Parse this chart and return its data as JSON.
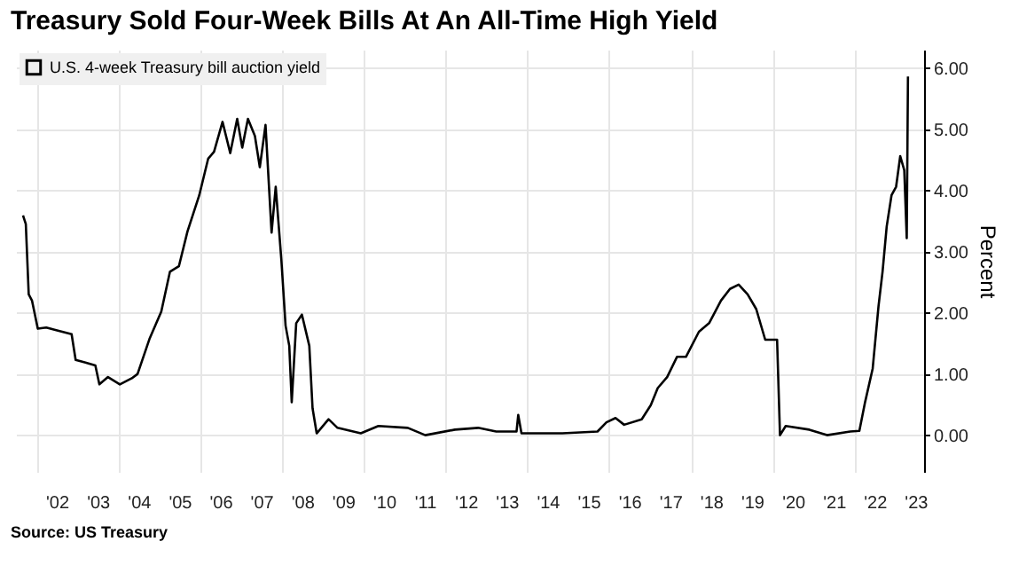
{
  "chart_data": {
    "type": "line",
    "title": "Treasury Sold Four-Week Bills At An All-Time High Yield",
    "ylabel": "Percent",
    "annotations": [
      "Source: US Treasury"
    ],
    "series": [
      {
        "name": "U.S. 4-week Treasury bill auction yield",
        "color": "#000000",
        "x": [
          "2001-09-02",
          "2001-09-27",
          "2001-10-23",
          "2001-11-21",
          "2002-01-12",
          "2002-03-29",
          "2002-06-18",
          "2002-11-10",
          "2002-12-16",
          "2003-03-07",
          "2003-06-10",
          "2003-07-16",
          "2003-10-01",
          "2004-01-15",
          "2004-05-01",
          "2004-06-21",
          "2004-10-05",
          "2005-01-19",
          "2005-04-06",
          "2005-06-25",
          "2005-09-10",
          "2005-12-24",
          "2006-03-14",
          "2006-05-05",
          "2006-07-20",
          "2006-09-27",
          "2006-11-28",
          "2007-01-12",
          "2007-03-04",
          "2007-05-05",
          "2007-06-18",
          "2007-08-08",
          "2007-10-01",
          "2007-11-07",
          "2007-12-28",
          "2008-02-03",
          "2008-03-07",
          "2008-03-29",
          "2008-05-08",
          "2008-06-28",
          "2008-09-02",
          "2008-10-01",
          "2008-11-07",
          "2009-02-21",
          "2009-05-12",
          "2009-12-06",
          "2010-05-12",
          "2011-01-30",
          "2011-07-05",
          "2012-03-25",
          "2012-10-19",
          "2013-03-29",
          "2013-09-27",
          "2013-10-12",
          "2013-11-10",
          "2014-11-10",
          "2015-09-20",
          "2015-12-09",
          "2016-02-28",
          "2016-05-15",
          "2016-10-19",
          "2017-01-08",
          "2017-03-11",
          "2017-06-03",
          "2017-08-30",
          "2017-11-18",
          "2018-03-14",
          "2018-06-13",
          "2018-09-27",
          "2018-12-16",
          "2019-03-04",
          "2019-05-23",
          "2019-08-08",
          "2019-10-27",
          "2020-02-10",
          "2020-03-07",
          "2020-04-27",
          "2020-11-24",
          "2021-05-01",
          "2021-11-24",
          "2022-02-14",
          "2022-04-06",
          "2022-06-13",
          "2022-08-04",
          "2022-09-09",
          "2022-10-16",
          "2022-11-28",
          "2023-01-08",
          "2023-02-14",
          "2023-03-22",
          "2023-04-13",
          "2023-04-24"
        ],
        "values": [
          3.59,
          3.45,
          2.3,
          2.2,
          1.74,
          1.76,
          1.72,
          1.65,
          1.23,
          1.19,
          1.14,
          0.83,
          0.95,
          0.83,
          0.93,
          1.0,
          1.57,
          2.02,
          2.67,
          2.76,
          3.33,
          3.92,
          4.52,
          4.63,
          5.12,
          4.61,
          5.17,
          4.7,
          5.17,
          4.89,
          4.38,
          5.07,
          3.31,
          4.06,
          2.85,
          1.79,
          1.46,
          0.54,
          1.83,
          1.97,
          1.46,
          0.44,
          0.03,
          0.26,
          0.12,
          0.03,
          0.15,
          0.12,
          0.0,
          0.09,
          0.12,
          0.06,
          0.06,
          0.33,
          0.03,
          0.03,
          0.06,
          0.21,
          0.28,
          0.17,
          0.26,
          0.49,
          0.77,
          0.95,
          1.28,
          1.28,
          1.69,
          1.83,
          2.2,
          2.39,
          2.46,
          2.3,
          2.06,
          1.56,
          1.56,
          0.0,
          0.15,
          0.09,
          0.0,
          0.06,
          0.07,
          0.54,
          1.09,
          2.11,
          2.67,
          3.41,
          3.92,
          4.06,
          4.56,
          4.33,
          3.22,
          5.86
        ]
      }
    ],
    "xlim": [
      "2001-07-01",
      "2023-09-15"
    ],
    "xticks": [
      {
        "value": "2002",
        "label": null
      },
      {
        "value": "2004",
        "label": null
      },
      {
        "value": "2006",
        "label": null
      },
      {
        "value": "2008",
        "label": null
      },
      {
        "value": "2010",
        "label": null
      },
      {
        "value": "2012",
        "label": null
      },
      {
        "value": "2014",
        "label": null
      },
      {
        "value": "2016",
        "label": null
      },
      {
        "value": "2018",
        "label": null
      },
      {
        "value": "2020",
        "label": null
      },
      {
        "value": "2022",
        "label": null
      },
      {
        "value": "2002-07-01",
        "label": "'02"
      },
      {
        "value": "2003-07-01",
        "label": "'03"
      },
      {
        "value": "2004-07-01",
        "label": "'04"
      },
      {
        "value": "2005-07-01",
        "label": "'05"
      },
      {
        "value": "2006-07-01",
        "label": "'06"
      },
      {
        "value": "2007-07-01",
        "label": "'07"
      },
      {
        "value": "2008-07-01",
        "label": "'08"
      },
      {
        "value": "2009-07-01",
        "label": "'09"
      },
      {
        "value": "2010-07-01",
        "label": "'10"
      },
      {
        "value": "2011-07-01",
        "label": "'11"
      },
      {
        "value": "2012-07-01",
        "label": "'12"
      },
      {
        "value": "2013-07-01",
        "label": "'13"
      },
      {
        "value": "2014-07-01",
        "label": "'14"
      },
      {
        "value": "2015-07-01",
        "label": "'15"
      },
      {
        "value": "2016-07-01",
        "label": "'16"
      },
      {
        "value": "2017-07-01",
        "label": "'17"
      },
      {
        "value": "2018-07-01",
        "label": "'18"
      },
      {
        "value": "2019-07-01",
        "label": "'19"
      },
      {
        "value": "2020-07-01",
        "label": "'20"
      },
      {
        "value": "2021-07-01",
        "label": "'21"
      },
      {
        "value": "2022-07-01",
        "label": "'22"
      },
      {
        "value": "2023-07-01",
        "label": "'23"
      }
    ],
    "ylim": [
      -0.6,
      6.3
    ],
    "yticks": [
      {
        "value": 0,
        "label": "0.00"
      },
      {
        "value": 1,
        "label": "1.00"
      },
      {
        "value": 2,
        "label": "2.00"
      },
      {
        "value": 3,
        "label": "3.00"
      },
      {
        "value": 4,
        "label": "4.00"
      },
      {
        "value": 5,
        "label": "5.00"
      },
      {
        "value": 6,
        "label": "6.00"
      }
    ],
    "grid": true,
    "legend": "top left",
    "line_style": "solid",
    "marker": "none"
  }
}
